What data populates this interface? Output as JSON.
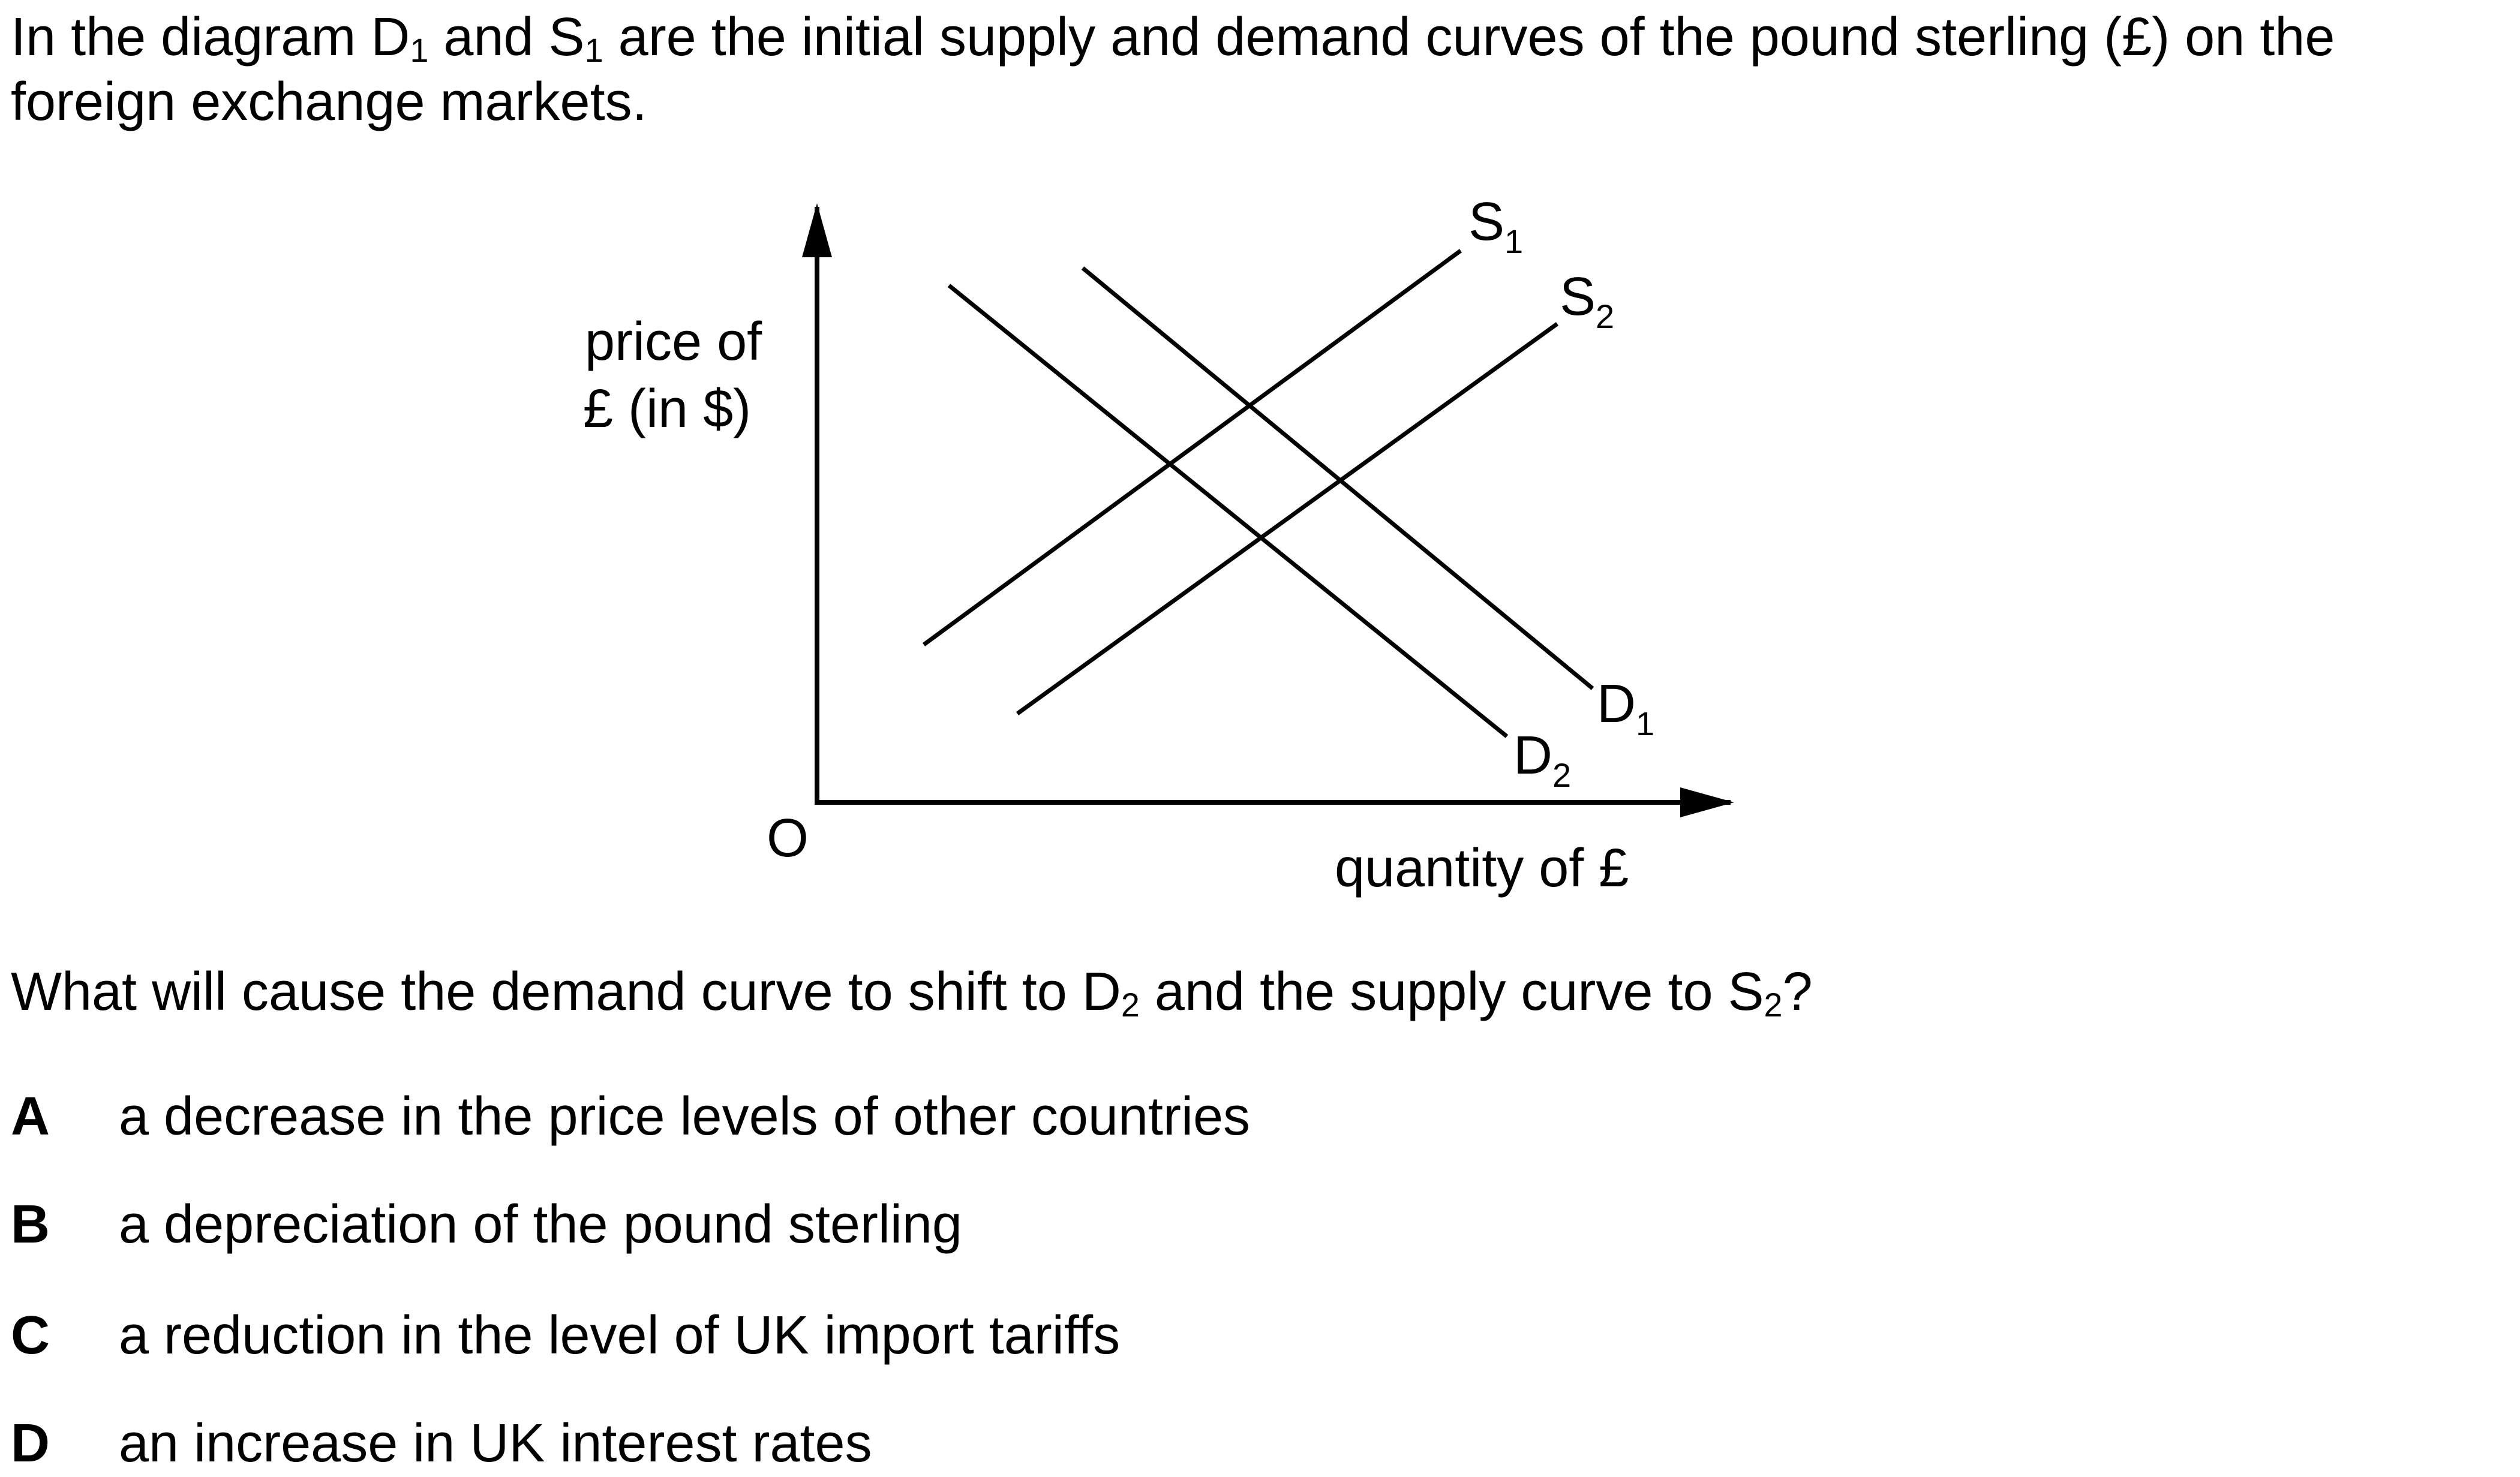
{
  "intro": {
    "part1": "In the diagram D",
    "sub1": "1",
    "part2": " and S",
    "sub2": "1",
    "part3": " are the initial supply and demand curves of the pound sterling (£) on the foreign exchange markets."
  },
  "diagram": {
    "y_axis_label_line1": "price of",
    "y_axis_label_line2": "£ (in $)",
    "x_axis_label": "quantity of £",
    "origin_label": "O",
    "curves": {
      "S1": {
        "letter": "S",
        "sub": "1"
      },
      "S2": {
        "letter": "S",
        "sub": "2"
      },
      "D1": {
        "letter": "D",
        "sub": "1"
      },
      "D2": {
        "letter": "D",
        "sub": "2"
      }
    }
  },
  "question": {
    "part1": "What will cause the demand curve to shift to D",
    "sub1": "2",
    "part2": " and the supply curve to S",
    "sub2": "2",
    "part3": "?"
  },
  "options": [
    {
      "letter": "A",
      "text": "a decrease in the price levels of other countries"
    },
    {
      "letter": "B",
      "text": "a depreciation of the pound sterling"
    },
    {
      "letter": "C",
      "text": "a reduction in the level of UK import tariffs"
    },
    {
      "letter": "D",
      "text": "an increase in UK interest rates"
    }
  ]
}
